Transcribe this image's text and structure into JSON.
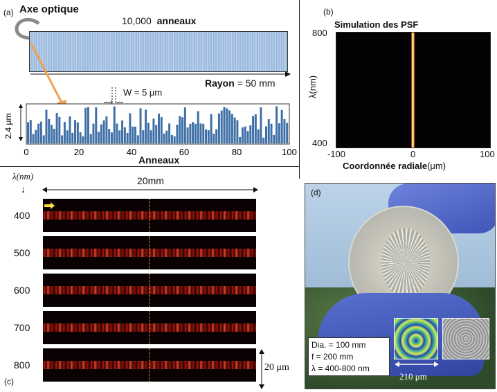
{
  "panel_a": {
    "label": "(a)",
    "axe_optique": "Axe optique",
    "rings_count": "10,000",
    "rings_word": "anneaux",
    "rayon_word": "Rayon",
    "rayon_value": "= 50 mm",
    "width_label": "W = 5 μm",
    "height_label": "2.4 μm",
    "x_ticks": [
      "0",
      "20",
      "40",
      "60",
      "80",
      "100"
    ],
    "x_label": "Anneaux"
  },
  "panel_b": {
    "label": "(b)",
    "title": "Simulation des PSF",
    "y_label": "λ(nm)",
    "y_ticks": [
      "800",
      "400"
    ],
    "x_ticks": [
      "-100",
      "0",
      "100"
    ],
    "x_label_bold": "Coordonnée radiale",
    "x_label_unit": "(μm)"
  },
  "panel_c": {
    "label": "(c)",
    "lambda_label": "λ(nm)",
    "arrow_down": "↓",
    "width_label": "20mm",
    "rows": [
      "400",
      "500",
      "600",
      "700",
      "800"
    ],
    "height_label": "20 μm"
  },
  "panel_d": {
    "label": "(d)",
    "specs": [
      "Dia. = 100 mm",
      "f = 200 mm",
      "λ = 400-800 nm"
    ],
    "scale_label": "210 μm"
  },
  "colors": {
    "bar_blue": "#3f6fa7",
    "psf_orange": "#ff9a3c",
    "arrow_orange": "#f0a050",
    "arrow_yellow": "#ffe033",
    "glove_blue": "#4a62c8",
    "sky_blue": "#9dbad6"
  }
}
